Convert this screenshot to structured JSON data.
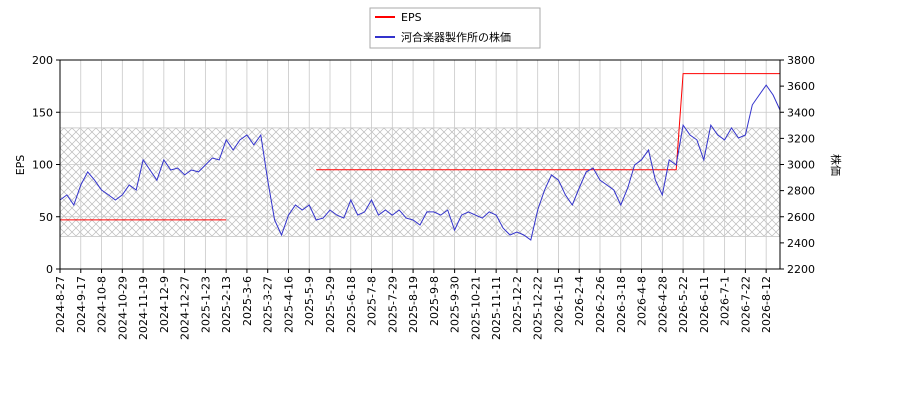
{
  "chart_data": {
    "type": "line",
    "categories": [
      "2024-8-27",
      null,
      null,
      "2024-9-17",
      null,
      null,
      "2024-10-8",
      null,
      null,
      "2024-10-29",
      null,
      null,
      "2024-11-19",
      null,
      null,
      "2024-12-9",
      null,
      null,
      "2024-12-27",
      null,
      null,
      "2025-1-23",
      null,
      null,
      "2025-2-13",
      null,
      null,
      "2025-3-6",
      null,
      null,
      "2025-3-27",
      null,
      null,
      "2025-4-16",
      null,
      null,
      "2025-5-9",
      null,
      null,
      "2025-5-29",
      null,
      null,
      "2025-6-18",
      null,
      null,
      "2025-7-8",
      null,
      null,
      "2025-7-29",
      null,
      null,
      "2025-8-19",
      null,
      null,
      "2025-9-8",
      null,
      null,
      "2025-9-30",
      null,
      null,
      "2025-10-21",
      null,
      null,
      "2025-11-11",
      null,
      null,
      "2025-12-2",
      null,
      null,
      "2025-12-22",
      null,
      null,
      "2026-1-15",
      null,
      null,
      "2026-2-4",
      null,
      null,
      "2026-2-26",
      null,
      null,
      "2026-3-18",
      null,
      null,
      "2026-4-8",
      null,
      null,
      "2026-4-28",
      null,
      null,
      "2026-5-22",
      null,
      null,
      "2026-6-11",
      null,
      null,
      "2026-7-1",
      null,
      null,
      "2026-7-22",
      null,
      null,
      "2026-8-12",
      null,
      null
    ],
    "series": [
      {
        "name": "EPS",
        "color": "#ff0000",
        "values": [
          47,
          47,
          47,
          47,
          47,
          47,
          47,
          47,
          47,
          47,
          47,
          47,
          47,
          47,
          47,
          47,
          47,
          47,
          47,
          47,
          47,
          47,
          47,
          47,
          47,
          null,
          null,
          null,
          null,
          null,
          null,
          null,
          null,
          null,
          null,
          null,
          null,
          95,
          95,
          95,
          95,
          95,
          95,
          95,
          95,
          95,
          95,
          95,
          95,
          95,
          95,
          95,
          95,
          95,
          95,
          95,
          95,
          95,
          95,
          95,
          95,
          95,
          95,
          95,
          95,
          95,
          95,
          95,
          95,
          95,
          95,
          95,
          95,
          95,
          95,
          95,
          95,
          95,
          95,
          95,
          95,
          95,
          95,
          95,
          95,
          95,
          95,
          95,
          95,
          95,
          187,
          187,
          187,
          187,
          187,
          187,
          187,
          187,
          187,
          187,
          187,
          187,
          187,
          187,
          187
        ]
      },
      {
        "name": "河合楽器製作所の株価",
        "color": "#3333cc",
        "axis": "y2",
        "values": [
          2728,
          2767,
          2690,
          2843,
          2943,
          2880,
          2805,
          2767,
          2728,
          2767,
          2843,
          2805,
          3035,
          2958,
          2880,
          3035,
          2958,
          2973,
          2920,
          2958,
          2943,
          2996,
          3050,
          3035,
          3188,
          3111,
          3188,
          3226,
          3150,
          3226,
          2880,
          2575,
          2460,
          2613,
          2690,
          2652,
          2690,
          2575,
          2590,
          2652,
          2613,
          2590,
          2728,
          2613,
          2637,
          2728,
          2613,
          2652,
          2613,
          2652,
          2590,
          2575,
          2537,
          2637,
          2637,
          2613,
          2652,
          2498,
          2613,
          2637,
          2613,
          2590,
          2637,
          2613,
          2513,
          2460,
          2483,
          2460,
          2422,
          2652,
          2805,
          2920,
          2880,
          2767,
          2690,
          2820,
          2943,
          2973,
          2880,
          2843,
          2805,
          2690,
          2820,
          2996,
          3035,
          3111,
          2880,
          2767,
          3035,
          2996,
          3302,
          3226,
          3188,
          3035,
          3302,
          3226,
          3188,
          3280,
          3203,
          3226,
          3456,
          3532,
          3608,
          3532,
          3417
        ]
      }
    ],
    "ylim": [
      0,
      200
    ],
    "yticks": [
      0,
      50,
      100,
      150,
      200
    ],
    "y2lim": [
      2200,
      3800
    ],
    "y2ticks": [
      2200,
      2400,
      2600,
      2800,
      3000,
      3200,
      3400,
      3600,
      3800
    ],
    "ylabel": "EPS",
    "y2label": "株価",
    "shaded_range": [
      2450,
      3280
    ],
    "grid": true,
    "legend": "upper center"
  }
}
